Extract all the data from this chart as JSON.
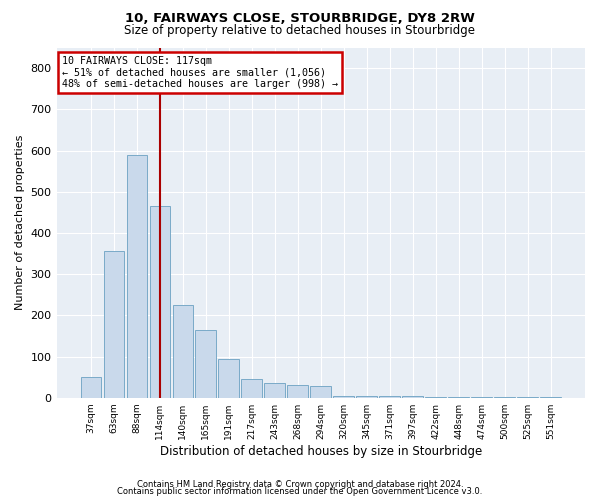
{
  "title": "10, FAIRWAYS CLOSE, STOURBRIDGE, DY8 2RW",
  "subtitle": "Size of property relative to detached houses in Stourbridge",
  "xlabel": "Distribution of detached houses by size in Stourbridge",
  "ylabel": "Number of detached properties",
  "footer_line1": "Contains HM Land Registry data © Crown copyright and database right 2024.",
  "footer_line2": "Contains public sector information licensed under the Open Government Licence v3.0.",
  "annotation_line1": "10 FAIRWAYS CLOSE: 117sqm",
  "annotation_line2": "← 51% of detached houses are smaller (1,056)",
  "annotation_line3": "48% of semi-detached houses are larger (998) →",
  "bar_labels": [
    "37sqm",
    "63sqm",
    "88sqm",
    "114sqm",
    "140sqm",
    "165sqm",
    "191sqm",
    "217sqm",
    "243sqm",
    "268sqm",
    "294sqm",
    "320sqm",
    "345sqm",
    "371sqm",
    "397sqm",
    "422sqm",
    "448sqm",
    "474sqm",
    "500sqm",
    "525sqm",
    "551sqm"
  ],
  "bar_values": [
    50,
    355,
    590,
    465,
    225,
    165,
    95,
    45,
    35,
    30,
    28,
    5,
    5,
    3,
    3,
    2,
    2,
    1,
    1,
    1,
    1
  ],
  "bar_color": "#c9d9eb",
  "bar_edge_color": "#7aaac8",
  "vline_x_index": 3.0,
  "vline_color": "#aa0000",
  "annotation_box_color": "#cc0000",
  "background_color": "#e8eef5",
  "ylim": [
    0,
    850
  ],
  "yticks": [
    0,
    100,
    200,
    300,
    400,
    500,
    600,
    700,
    800
  ],
  "grid_color": "#ffffff",
  "title_fontsize": 9.5,
  "subtitle_fontsize": 8.5
}
